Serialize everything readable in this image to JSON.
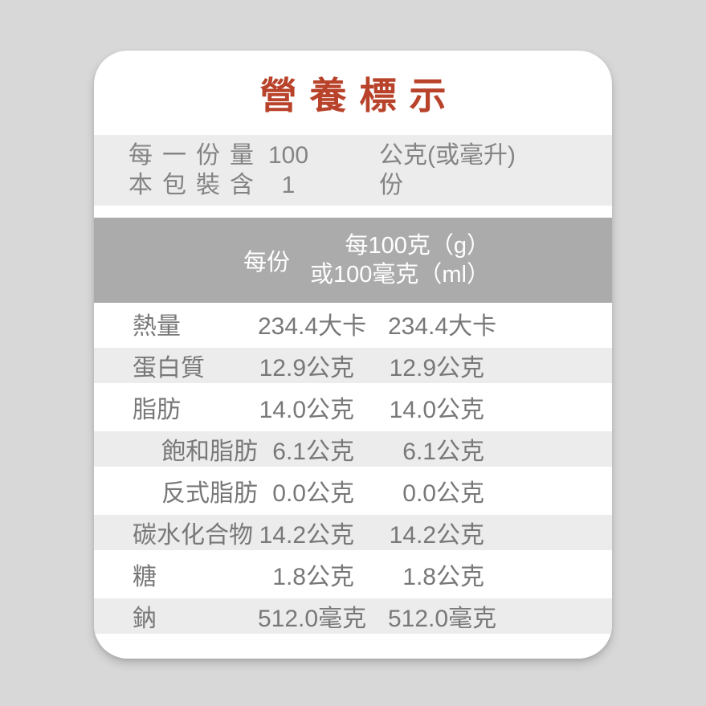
{
  "page": {
    "background_color": "#d8d8d8"
  },
  "card": {
    "background_color": "#ffffff",
    "title": "營養標示",
    "title_color": "#b9422a",
    "serving": {
      "band_color": "#ececec",
      "rows": [
        {
          "label": "每一份量",
          "value": "100",
          "unit": "公克(或毫升)"
        },
        {
          "label": "本包裝含",
          "value": "1",
          "unit": "份"
        }
      ]
    },
    "header": {
      "band_color": "#ababab",
      "text_color": "#ffffff",
      "per_serving_label": "每份",
      "per_100_line1": "每100克（g）",
      "per_100_line2": "或100毫克（ml）"
    },
    "table": {
      "stripe_color": "#ececec",
      "text_color": "#787878",
      "rows": [
        {
          "label": "熱量",
          "per_serving": "234.4大卡",
          "per_100": "234.4大卡",
          "indent": false,
          "shaded": false
        },
        {
          "label": "蛋白質",
          "per_serving": "12.9公克",
          "per_100": "12.9公克",
          "indent": false,
          "shaded": true
        },
        {
          "label": "脂肪",
          "per_serving": "14.0公克",
          "per_100": "14.0公克",
          "indent": false,
          "shaded": false
        },
        {
          "label": "飽和脂肪",
          "per_serving": "6.1公克",
          "per_100": "6.1公克",
          "indent": true,
          "shaded": true
        },
        {
          "label": "反式脂肪",
          "per_serving": "0.0公克",
          "per_100": "0.0公克",
          "indent": true,
          "shaded": false
        },
        {
          "label": "碳水化合物",
          "per_serving": "14.2公克",
          "per_100": "14.2公克",
          "indent": false,
          "shaded": true
        },
        {
          "label": "糖",
          "per_serving": "1.8公克",
          "per_100": "1.8公克",
          "indent": false,
          "shaded": false
        },
        {
          "label": "鈉",
          "per_serving": "512.0毫克",
          "per_100": "512.0毫克",
          "indent": false,
          "shaded": true
        }
      ]
    }
  }
}
